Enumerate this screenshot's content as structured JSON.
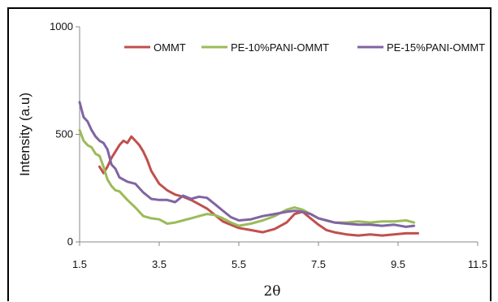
{
  "chart_data": {
    "type": "line",
    "title": "",
    "xlabel": "2θ",
    "ylabel": "Intensity (a.u)",
    "xlim": [
      1.5,
      11.5
    ],
    "ylim": [
      0,
      1000
    ],
    "xticks": [
      "1.5",
      "3.5",
      "5.5",
      "7.5",
      "9.5",
      "11.5"
    ],
    "yticks": [
      "0",
      "500",
      "1000"
    ],
    "grid": false,
    "legend_position": "top",
    "series": [
      {
        "name": "OMMT",
        "color": "#c0504d",
        "x": [
          2.0,
          2.1,
          2.2,
          2.3,
          2.4,
          2.5,
          2.6,
          2.7,
          2.8,
          2.9,
          3.0,
          3.1,
          3.2,
          3.3,
          3.4,
          3.5,
          3.7,
          3.9,
          4.1,
          4.3,
          4.5,
          4.7,
          4.9,
          5.1,
          5.3,
          5.5,
          5.8,
          6.1,
          6.4,
          6.7,
          6.9,
          7.1,
          7.3,
          7.5,
          7.7,
          7.9,
          8.2,
          8.5,
          8.8,
          9.1,
          9.4,
          9.7,
          10.0
        ],
        "y": [
          350,
          320,
          350,
          390,
          420,
          450,
          470,
          460,
          490,
          470,
          450,
          420,
          380,
          330,
          300,
          270,
          240,
          220,
          210,
          195,
          175,
          155,
          125,
          95,
          80,
          65,
          55,
          45,
          60,
          90,
          130,
          140,
          110,
          80,
          55,
          45,
          35,
          30,
          35,
          30,
          35,
          40,
          40
        ]
      },
      {
        "name": "PE-10%PANI-OMMT",
        "color": "#9bbb59",
        "x": [
          1.5,
          1.6,
          1.7,
          1.8,
          1.9,
          2.0,
          2.1,
          2.2,
          2.3,
          2.4,
          2.5,
          2.7,
          2.9,
          3.1,
          3.3,
          3.5,
          3.7,
          3.9,
          4.1,
          4.3,
          4.5,
          4.7,
          4.9,
          5.1,
          5.3,
          5.5,
          5.8,
          6.1,
          6.4,
          6.7,
          6.9,
          7.1,
          7.3,
          7.5,
          7.7,
          7.9,
          8.2,
          8.5,
          8.8,
          9.1,
          9.4,
          9.7,
          9.9
        ],
        "y": [
          520,
          470,
          450,
          440,
          410,
          400,
          350,
          290,
          260,
          240,
          235,
          195,
          160,
          120,
          110,
          105,
          85,
          90,
          100,
          110,
          120,
          130,
          125,
          110,
          90,
          75,
          85,
          100,
          120,
          150,
          160,
          150,
          130,
          110,
          100,
          90,
          90,
          95,
          90,
          95,
          95,
          100,
          90
        ]
      },
      {
        "name": "PE-15%PANI-OMMT",
        "color": "#8064a2",
        "x": [
          1.5,
          1.6,
          1.7,
          1.8,
          1.9,
          2.0,
          2.1,
          2.2,
          2.3,
          2.4,
          2.5,
          2.7,
          2.9,
          3.1,
          3.3,
          3.5,
          3.7,
          3.9,
          4.1,
          4.3,
          4.5,
          4.7,
          4.9,
          5.1,
          5.3,
          5.5,
          5.8,
          6.1,
          6.4,
          6.7,
          6.9,
          7.1,
          7.3,
          7.5,
          7.7,
          7.9,
          8.2,
          8.5,
          8.8,
          9.1,
          9.4,
          9.7,
          9.9
        ],
        "y": [
          650,
          580,
          560,
          520,
          490,
          470,
          460,
          430,
          360,
          340,
          300,
          280,
          270,
          230,
          200,
          195,
          195,
          185,
          215,
          200,
          210,
          205,
          175,
          145,
          115,
          100,
          105,
          120,
          130,
          140,
          145,
          140,
          130,
          110,
          100,
          90,
          85,
          80,
          80,
          75,
          80,
          70,
          75
        ]
      }
    ]
  }
}
